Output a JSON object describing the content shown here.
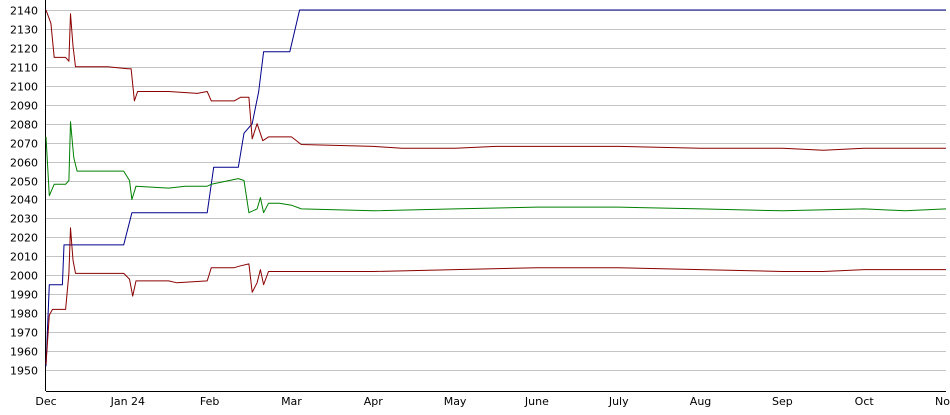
{
  "chart_data": {
    "type": "line",
    "title": "",
    "xlabel": "",
    "ylabel": "",
    "ylim": [
      1945,
      2140
    ],
    "yticks": [
      1950,
      1960,
      1970,
      1980,
      1990,
      2000,
      2010,
      2020,
      2030,
      2040,
      2050,
      2060,
      2070,
      2080,
      2090,
      2100,
      2110,
      2120,
      2130,
      2140
    ],
    "xticks": [
      {
        "label": "Dec",
        "x": 0
      },
      {
        "label": "Jan 24",
        "x": 1
      },
      {
        "label": "Feb",
        "x": 2
      },
      {
        "label": "Mar",
        "x": 3
      },
      {
        "label": "Apr",
        "x": 4
      },
      {
        "label": "May",
        "x": 5
      },
      {
        "label": "June",
        "x": 6
      },
      {
        "label": "July",
        "x": 7
      },
      {
        "label": "Aug",
        "x": 8
      },
      {
        "label": "Sep",
        "x": 9
      },
      {
        "label": "Oct",
        "x": 10
      },
      {
        "label": "No",
        "x": 11
      }
    ],
    "grid": true,
    "series": [
      {
        "color": "#00008b",
        "points": [
          [
            0,
            1952
          ],
          [
            0.04,
            1995
          ],
          [
            0.2,
            1995
          ],
          [
            0.22,
            2016
          ],
          [
            0.95,
            2016
          ],
          [
            1.05,
            2033
          ],
          [
            1.97,
            2033
          ],
          [
            2.05,
            2057
          ],
          [
            2.35,
            2057
          ],
          [
            2.42,
            2075
          ],
          [
            2.52,
            2080
          ],
          [
            2.6,
            2097
          ],
          [
            2.66,
            2118
          ],
          [
            2.98,
            2118
          ],
          [
            3.1,
            2140
          ],
          [
            11,
            2140
          ]
        ]
      },
      {
        "color": "#8b0000",
        "points": [
          [
            0,
            2140
          ],
          [
            0.06,
            2133
          ],
          [
            0.1,
            2115
          ],
          [
            0.24,
            2115
          ],
          [
            0.28,
            2113
          ],
          [
            0.3,
            2138
          ],
          [
            0.33,
            2121
          ],
          [
            0.36,
            2110
          ],
          [
            0.6,
            2110
          ],
          [
            0.75,
            2110
          ],
          [
            1.0,
            2109
          ],
          [
            1.04,
            2109
          ],
          [
            1.08,
            2092
          ],
          [
            1.12,
            2097
          ],
          [
            1.5,
            2097
          ],
          [
            1.85,
            2096
          ],
          [
            1.97,
            2097
          ],
          [
            2.02,
            2092
          ],
          [
            2.3,
            2092
          ],
          [
            2.38,
            2094
          ],
          [
            2.48,
            2094
          ],
          [
            2.52,
            2072
          ],
          [
            2.58,
            2080
          ],
          [
            2.65,
            2071
          ],
          [
            2.72,
            2073
          ],
          [
            2.85,
            2073
          ],
          [
            3.0,
            2073
          ],
          [
            3.12,
            2069
          ],
          [
            4.0,
            2068
          ],
          [
            4.35,
            2067
          ],
          [
            5.0,
            2067
          ],
          [
            5.5,
            2068
          ],
          [
            6.0,
            2068
          ],
          [
            7.0,
            2068
          ],
          [
            8.0,
            2067
          ],
          [
            9.0,
            2067
          ],
          [
            9.5,
            2066
          ],
          [
            10.0,
            2067
          ],
          [
            10.5,
            2067
          ],
          [
            11,
            2067
          ]
        ]
      },
      {
        "color": "#008000",
        "points": [
          [
            0,
            2073
          ],
          [
            0.04,
            2042
          ],
          [
            0.1,
            2048
          ],
          [
            0.24,
            2048
          ],
          [
            0.28,
            2050
          ],
          [
            0.3,
            2081
          ],
          [
            0.34,
            2062
          ],
          [
            0.38,
            2055
          ],
          [
            0.95,
            2055
          ],
          [
            1.02,
            2050
          ],
          [
            1.05,
            2040
          ],
          [
            1.1,
            2047
          ],
          [
            1.5,
            2046
          ],
          [
            1.7,
            2047
          ],
          [
            1.97,
            2047
          ],
          [
            2.02,
            2048
          ],
          [
            2.35,
            2051
          ],
          [
            2.42,
            2050
          ],
          [
            2.48,
            2033
          ],
          [
            2.58,
            2035
          ],
          [
            2.62,
            2041
          ],
          [
            2.66,
            2033
          ],
          [
            2.72,
            2038
          ],
          [
            2.85,
            2038
          ],
          [
            3.0,
            2037
          ],
          [
            3.12,
            2035
          ],
          [
            4.0,
            2034
          ],
          [
            5.0,
            2035
          ],
          [
            6.0,
            2036
          ],
          [
            7.0,
            2036
          ],
          [
            8.0,
            2035
          ],
          [
            9.0,
            2034
          ],
          [
            10.0,
            2035
          ],
          [
            10.5,
            2034
          ],
          [
            11,
            2035
          ]
        ]
      },
      {
        "color": "#8b0000",
        "points": [
          [
            0,
            1953
          ],
          [
            0.04,
            1979
          ],
          [
            0.08,
            1982
          ],
          [
            0.24,
            1982
          ],
          [
            0.28,
            2001
          ],
          [
            0.3,
            2025
          ],
          [
            0.33,
            2008
          ],
          [
            0.36,
            2001
          ],
          [
            0.95,
            2001
          ],
          [
            1.02,
            1998
          ],
          [
            1.06,
            1989
          ],
          [
            1.1,
            1997
          ],
          [
            1.5,
            1997
          ],
          [
            1.6,
            1996
          ],
          [
            1.97,
            1997
          ],
          [
            2.02,
            2004
          ],
          [
            2.3,
            2004
          ],
          [
            2.38,
            2005
          ],
          [
            2.48,
            2006
          ],
          [
            2.52,
            1991
          ],
          [
            2.58,
            1996
          ],
          [
            2.62,
            2003
          ],
          [
            2.66,
            1995
          ],
          [
            2.72,
            2002
          ],
          [
            2.85,
            2002
          ],
          [
            3.0,
            2002
          ],
          [
            3.12,
            2002
          ],
          [
            4.0,
            2002
          ],
          [
            5.0,
            2003
          ],
          [
            6.0,
            2004
          ],
          [
            7.0,
            2004
          ],
          [
            8.0,
            2003
          ],
          [
            9.0,
            2002
          ],
          [
            9.5,
            2002
          ],
          [
            10.0,
            2003
          ],
          [
            10.5,
            2003
          ],
          [
            11,
            2003
          ]
        ]
      }
    ]
  }
}
